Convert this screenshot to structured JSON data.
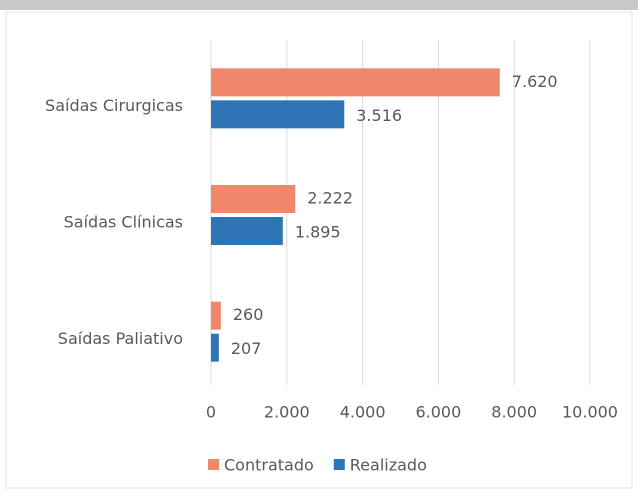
{
  "chart_data": {
    "type": "hbar",
    "categories": [
      "Saídas Cirurgicas",
      "Saídas Clínicas",
      "Saídas Paliativo"
    ],
    "series": [
      {
        "name": "Contratado",
        "color": "#f0876a",
        "values": [
          7620,
          2222,
          260
        ],
        "value_labels": [
          "7.620",
          "2.222",
          "260"
        ]
      },
      {
        "name": "Realizado",
        "color": "#2e75b6",
        "values": [
          3516,
          1895,
          207
        ],
        "value_labels": [
          "3.516",
          "1.895",
          "207"
        ]
      }
    ],
    "xlim": [
      0,
      10000
    ],
    "xticks": [
      0,
      {
        "value": 2000,
        "label": "2.000"
      },
      {
        "value": 4000,
        "label": "4.000"
      },
      {
        "value": 6000,
        "label": "6.000"
      },
      {
        "value": 8000,
        "label": "8.000"
      },
      {
        "value": 10000,
        "label": "10.000"
      }
    ],
    "grid": true,
    "legend": "bottom"
  }
}
